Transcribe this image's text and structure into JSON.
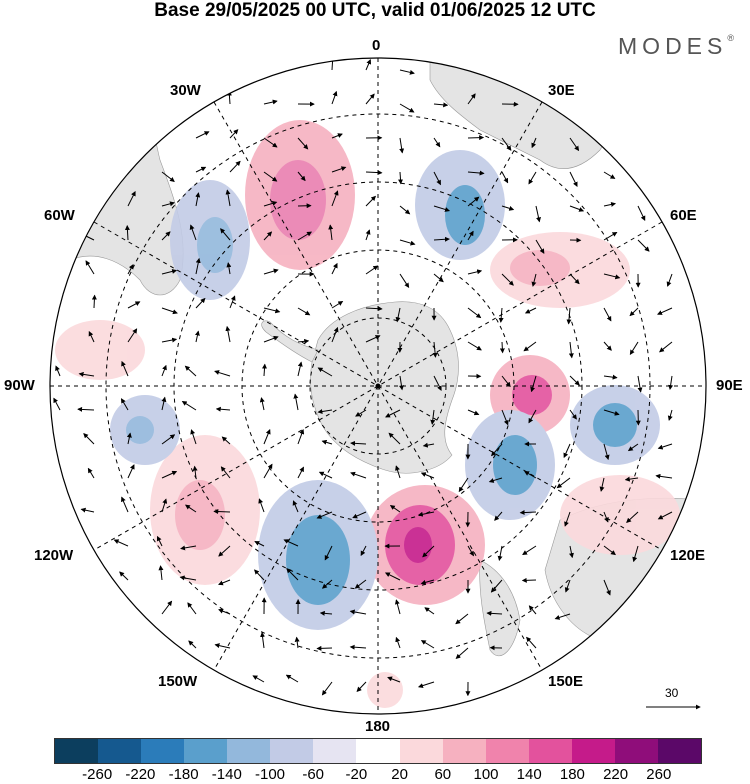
{
  "title": "Base 29/05/2025 00 UTC, valid 01/06/2025 12 UTC",
  "brand": "MODES",
  "brand_mark": "®",
  "meridian_labels": {
    "lon_0": "0",
    "lon_30e": "30E",
    "lon_60e": "60E",
    "lon_90e": "90E",
    "lon_120e": "120E",
    "lon_150e": "150E",
    "lon_180": "180",
    "lon_150w": "150W",
    "lon_120w": "120W",
    "lon_90w": "90W",
    "lon_60w": "60W",
    "lon_30w": "30W"
  },
  "vector_scale_label": "30",
  "colorbar": {
    "colors": [
      "#0c3e5e",
      "#15598f",
      "#2b7cba",
      "#5a9fcc",
      "#93b8dc",
      "#c2cbe6",
      "#e6e4f2",
      "#ffffff",
      "#fbd9dc",
      "#f6b1c0",
      "#f083ac",
      "#e3529d",
      "#c51b8a",
      "#8f0d7a",
      "#5b0868"
    ],
    "tick_labels": [
      "-260",
      "-220",
      "-180",
      "-140",
      "-100",
      "-60",
      "-20",
      "20",
      "60",
      "100",
      "140",
      "180",
      "220",
      "260"
    ]
  },
  "icons": {
    "vector-arrow": "arrow",
    "pole-marker": "dot"
  }
}
